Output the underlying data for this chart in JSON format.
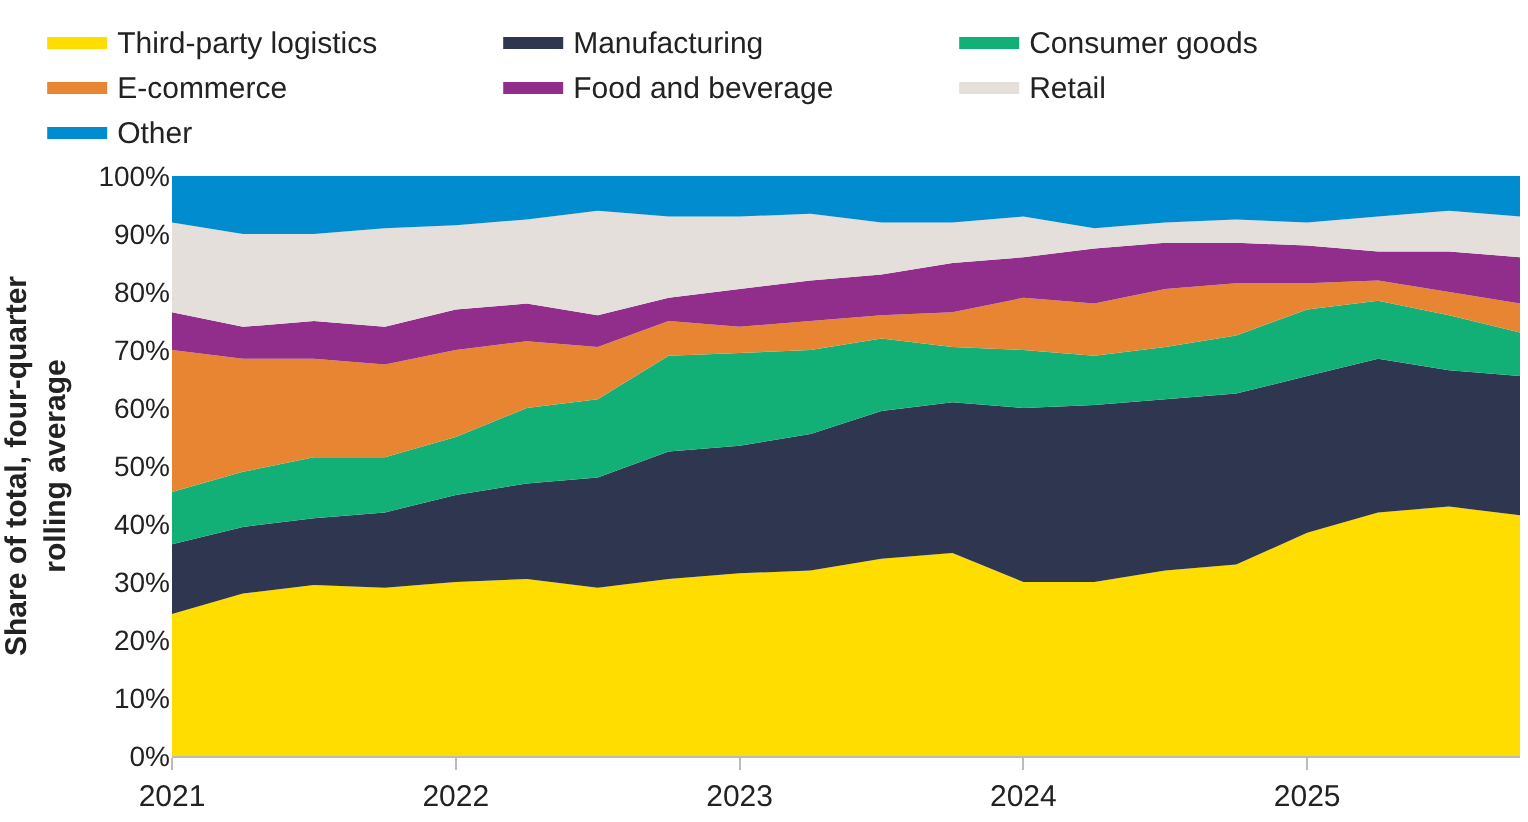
{
  "chart_data": {
    "type": "area",
    "stacked": true,
    "ylabel": "Share of total, four-quarter\nrolling average",
    "x": [
      2021,
      2021.25,
      2021.5,
      2021.75,
      2022,
      2022.25,
      2022.5,
      2022.75,
      2023,
      2023.25,
      2023.5,
      2023.75,
      2024,
      2024.25,
      2024.5,
      2024.75,
      2025,
      2025.25,
      2025.5,
      2025.75
    ],
    "xlim": [
      2021,
      2025.75
    ],
    "xticks": [
      2021,
      2022,
      2023,
      2024,
      2025
    ],
    "ylim": [
      0,
      100
    ],
    "yticks": [
      {
        "value": 0,
        "label": "0%"
      },
      {
        "value": 10,
        "label": "10%"
      },
      {
        "value": 20,
        "label": "20%"
      },
      {
        "value": 30,
        "label": "30%"
      },
      {
        "value": 40,
        "label": "40%"
      },
      {
        "value": 50,
        "label": "50%"
      },
      {
        "value": 60,
        "label": "60%"
      },
      {
        "value": 70,
        "label": "70%"
      },
      {
        "value": 80,
        "label": "80%"
      },
      {
        "value": 90,
        "label": "90%"
      },
      {
        "value": 100,
        "label": "100%"
      }
    ],
    "legend": "top left",
    "series": [
      {
        "name": "Third-party logistics",
        "color": "#ffdd00",
        "values": [
          24.5,
          28,
          29.5,
          29,
          30,
          30.5,
          29,
          30.5,
          31.5,
          32,
          34,
          35,
          30,
          30,
          32,
          33,
          38.5,
          42,
          43,
          41.5
        ]
      },
      {
        "name": "Manufacturing",
        "color": "#2e3650",
        "values": [
          12,
          11.5,
          11.5,
          13,
          15,
          16.5,
          19,
          22,
          22,
          23.5,
          25.5,
          26,
          30,
          30.5,
          29.5,
          29.5,
          27,
          26.5,
          23.5,
          24
        ]
      },
      {
        "name": "Consumer goods",
        "color": "#12b077",
        "values": [
          9,
          9.5,
          10.5,
          9.5,
          10,
          13,
          13.5,
          16.5,
          16,
          14.5,
          12.5,
          9.5,
          10,
          8.5,
          9,
          10,
          11.5,
          10,
          9.5,
          7.5
        ]
      },
      {
        "name": "E-commerce",
        "color": "#e88532",
        "values": [
          24.5,
          19.5,
          17,
          16,
          15,
          11.5,
          9,
          6,
          4.5,
          5,
          4,
          6,
          9,
          9,
          10,
          9,
          4.5,
          3.5,
          4,
          5
        ]
      },
      {
        "name": "Food and beverage",
        "color": "#912e8c",
        "values": [
          6.5,
          5.5,
          6.5,
          6.5,
          7,
          6.5,
          5.5,
          4,
          6.5,
          7,
          7,
          8.5,
          7,
          9.5,
          8,
          7,
          6.5,
          5,
          7,
          8
        ]
      },
      {
        "name": "Retail",
        "color": "#e4dfdb",
        "values": [
          15.5,
          16,
          15,
          17,
          14.5,
          14.5,
          18,
          14,
          12.5,
          11.5,
          9,
          7,
          7,
          3.5,
          3.5,
          4,
          4,
          6,
          7,
          7
        ]
      },
      {
        "name": "Other",
        "color": "#008ccf",
        "values": [
          8,
          10,
          10,
          9,
          8.5,
          7.5,
          6,
          7,
          7,
          6.5,
          8,
          8,
          7,
          9,
          8,
          7.5,
          8,
          7,
          6,
          7
        ]
      }
    ]
  }
}
